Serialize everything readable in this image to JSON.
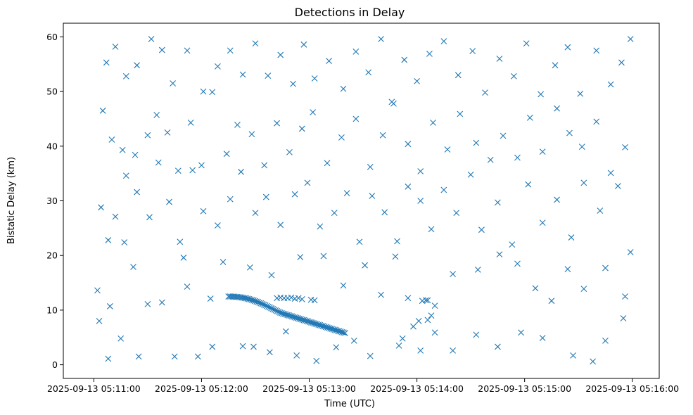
{
  "chart_data": {
    "type": "scatter",
    "title": "Detections in Delay",
    "xlabel": "Time (UTC)",
    "ylabel": "Bistatic Delay (km)",
    "marker": "x",
    "color": "#1f77b4",
    "grid": false,
    "legend": "none",
    "xlim": [
      "2025-09-13 05:10:43",
      "2025-09-13 05:16:15"
    ],
    "ylim": [
      -2.5,
      62.5
    ],
    "xticks": [
      "2025-09-13 05:11:00",
      "2025-09-13 05:12:00",
      "2025-09-13 05:13:00",
      "2025-09-13 05:14:00",
      "2025-09-13 05:15:00",
      "2025-09-13 05:16:00"
    ],
    "yticks": [
      0,
      10,
      20,
      30,
      40,
      50,
      60
    ],
    "track": {
      "start": {
        "time": "2025-09-13 05:12:15",
        "delay_km": 12.5
      },
      "end": {
        "time": "2025-09-13 05:13:20",
        "delay_km": 5.8
      }
    },
    "points": [
      [
        "2025-09-13 05:11:03",
        8.0
      ],
      [
        "2025-09-13 05:11:08",
        1.1
      ],
      [
        "2025-09-13 05:11:02",
        13.6
      ],
      [
        "2025-09-13 05:11:15",
        4.8
      ],
      [
        "2025-09-13 05:11:25",
        1.5
      ],
      [
        "2025-09-13 05:11:45",
        1.5
      ],
      [
        "2025-09-13 05:12:06",
        3.3
      ],
      [
        "2025-09-13 05:11:58",
        1.5
      ],
      [
        "2025-09-13 05:12:23",
        3.4
      ],
      [
        "2025-09-13 05:12:29",
        3.3
      ],
      [
        "2025-09-13 05:12:38",
        2.3
      ],
      [
        "2025-09-13 05:12:53",
        1.7
      ],
      [
        "2025-09-13 05:13:04",
        0.7
      ],
      [
        "2025-09-13 05:13:15",
        3.2
      ],
      [
        "2025-09-13 05:13:25",
        4.4
      ],
      [
        "2025-09-13 05:13:34",
        1.6
      ],
      [
        "2025-09-13 05:13:50",
        3.5
      ],
      [
        "2025-09-13 05:14:02",
        2.6
      ],
      [
        "2025-09-13 05:14:10",
        5.9
      ],
      [
        "2025-09-13 05:14:20",
        2.6
      ],
      [
        "2025-09-13 05:14:33",
        5.5
      ],
      [
        "2025-09-13 05:14:45",
        3.3
      ],
      [
        "2025-09-13 05:14:58",
        5.9
      ],
      [
        "2025-09-13 05:15:10",
        4.9
      ],
      [
        "2025-09-13 05:15:27",
        1.7
      ],
      [
        "2025-09-13 05:15:38",
        0.6
      ],
      [
        "2025-09-13 05:15:45",
        4.4
      ],
      [
        "2025-09-13 05:15:55",
        8.5
      ],
      [
        "2025-09-13 05:11:09",
        10.7
      ],
      [
        "2025-09-13 05:11:17",
        22.4
      ],
      [
        "2025-09-13 05:11:22",
        17.9
      ],
      [
        "2025-09-13 05:11:30",
        11.1
      ],
      [
        "2025-09-13 05:11:38",
        11.4
      ],
      [
        "2025-09-13 05:11:50",
        19.6
      ],
      [
        "2025-09-13 05:11:52",
        14.3
      ],
      [
        "2025-09-13 05:12:05",
        12.1
      ],
      [
        "2025-09-13 05:12:12",
        18.8
      ],
      [
        "2025-09-13 05:12:27",
        17.8
      ],
      [
        "2025-09-13 05:12:39",
        16.4
      ],
      [
        "2025-09-13 05:12:47",
        6.1
      ],
      [
        "2025-09-13 05:12:55",
        19.7
      ],
      [
        "2025-09-13 05:13:08",
        19.9
      ],
      [
        "2025-09-13 05:13:19",
        14.5
      ],
      [
        "2025-09-13 05:13:31",
        18.2
      ],
      [
        "2025-09-13 05:13:40",
        12.8
      ],
      [
        "2025-09-13 05:13:48",
        19.8
      ],
      [
        "2025-09-13 05:13:55",
        12.2
      ],
      [
        "2025-09-13 05:14:06",
        11.8
      ],
      [
        "2025-09-13 05:14:20",
        16.6
      ],
      [
        "2025-09-13 05:14:34",
        17.4
      ],
      [
        "2025-09-13 05:14:46",
        20.2
      ],
      [
        "2025-09-13 05:14:56",
        18.5
      ],
      [
        "2025-09-13 05:15:06",
        14.0
      ],
      [
        "2025-09-13 05:15:15",
        11.7
      ],
      [
        "2025-09-13 05:15:24",
        17.5
      ],
      [
        "2025-09-13 05:15:33",
        13.9
      ],
      [
        "2025-09-13 05:15:45",
        17.7
      ],
      [
        "2025-09-13 05:15:56",
        12.5
      ],
      [
        "2025-09-13 05:11:04",
        28.8
      ],
      [
        "2025-09-13 05:11:08",
        22.8
      ],
      [
        "2025-09-13 05:11:12",
        27.1
      ],
      [
        "2025-09-13 05:11:18",
        34.6
      ],
      [
        "2025-09-13 05:11:24",
        31.6
      ],
      [
        "2025-09-13 05:11:31",
        27.0
      ],
      [
        "2025-09-13 05:11:36",
        37.0
      ],
      [
        "2025-09-13 05:11:42",
        29.8
      ],
      [
        "2025-09-13 05:11:48",
        22.5
      ],
      [
        "2025-09-13 05:11:55",
        35.6
      ],
      [
        "2025-09-13 05:12:01",
        28.1
      ],
      [
        "2025-09-13 05:12:09",
        25.5
      ],
      [
        "2025-09-13 05:12:16",
        30.3
      ],
      [
        "2025-09-13 05:12:22",
        35.3
      ],
      [
        "2025-09-13 05:12:30",
        27.8
      ],
      [
        "2025-09-13 05:12:36",
        30.7
      ],
      [
        "2025-09-13 05:12:44",
        25.6
      ],
      [
        "2025-09-13 05:12:52",
        31.2
      ],
      [
        "2025-09-13 05:12:59",
        33.3
      ],
      [
        "2025-09-13 05:13:06",
        25.3
      ],
      [
        "2025-09-13 05:13:14",
        27.8
      ],
      [
        "2025-09-13 05:13:21",
        31.4
      ],
      [
        "2025-09-13 05:13:28",
        22.5
      ],
      [
        "2025-09-13 05:13:35",
        30.9
      ],
      [
        "2025-09-13 05:13:42",
        27.9
      ],
      [
        "2025-09-13 05:13:49",
        22.6
      ],
      [
        "2025-09-13 05:13:55",
        32.6
      ],
      [
        "2025-09-13 05:14:02",
        30.0
      ],
      [
        "2025-09-13 05:14:08",
        24.8
      ],
      [
        "2025-09-13 05:14:15",
        32.0
      ],
      [
        "2025-09-13 05:14:22",
        27.8
      ],
      [
        "2025-09-13 05:14:30",
        34.8
      ],
      [
        "2025-09-13 05:14:36",
        24.7
      ],
      [
        "2025-09-13 05:14:45",
        29.7
      ],
      [
        "2025-09-13 05:14:53",
        22.0
      ],
      [
        "2025-09-13 05:15:02",
        33.0
      ],
      [
        "2025-09-13 05:15:10",
        26.0
      ],
      [
        "2025-09-13 05:15:18",
        30.2
      ],
      [
        "2025-09-13 05:15:26",
        23.3
      ],
      [
        "2025-09-13 05:15:33",
        33.3
      ],
      [
        "2025-09-13 05:15:42",
        28.2
      ],
      [
        "2025-09-13 05:15:52",
        32.7
      ],
      [
        "2025-09-13 05:15:59",
        20.6
      ],
      [
        "2025-09-13 05:11:05",
        46.5
      ],
      [
        "2025-09-13 05:11:10",
        41.2
      ],
      [
        "2025-09-13 05:11:16",
        39.3
      ],
      [
        "2025-09-13 05:11:23",
        38.4
      ],
      [
        "2025-09-13 05:11:30",
        42.0
      ],
      [
        "2025-09-13 05:11:35",
        45.7
      ],
      [
        "2025-09-13 05:11:41",
        42.5
      ],
      [
        "2025-09-13 05:11:47",
        35.5
      ],
      [
        "2025-09-13 05:11:54",
        44.3
      ],
      [
        "2025-09-13 05:12:00",
        36.5
      ],
      [
        "2025-09-13 05:12:06",
        49.9
      ],
      [
        "2025-09-13 05:12:14",
        38.6
      ],
      [
        "2025-09-13 05:12:20",
        43.9
      ],
      [
        "2025-09-13 05:12:28",
        42.2
      ],
      [
        "2025-09-13 05:12:35",
        36.5
      ],
      [
        "2025-09-13 05:12:42",
        44.2
      ],
      [
        "2025-09-13 05:12:49",
        38.9
      ],
      [
        "2025-09-13 05:12:56",
        43.2
      ],
      [
        "2025-09-13 05:13:02",
        46.2
      ],
      [
        "2025-09-13 05:13:10",
        36.9
      ],
      [
        "2025-09-13 05:13:18",
        41.6
      ],
      [
        "2025-09-13 05:13:26",
        45.0
      ],
      [
        "2025-09-13 05:13:34",
        36.2
      ],
      [
        "2025-09-13 05:13:41",
        42.0
      ],
      [
        "2025-09-13 05:13:47",
        47.8
      ],
      [
        "2025-09-13 05:13:55",
        40.4
      ],
      [
        "2025-09-13 05:14:02",
        35.4
      ],
      [
        "2025-09-13 05:14:09",
        44.3
      ],
      [
        "2025-09-13 05:14:17",
        39.4
      ],
      [
        "2025-09-13 05:14:24",
        45.9
      ],
      [
        "2025-09-13 05:14:33",
        40.6
      ],
      [
        "2025-09-13 05:14:41",
        37.5
      ],
      [
        "2025-09-13 05:14:48",
        41.9
      ],
      [
        "2025-09-13 05:14:56",
        37.9
      ],
      [
        "2025-09-13 05:15:03",
        45.2
      ],
      [
        "2025-09-13 05:15:10",
        39.0
      ],
      [
        "2025-09-13 05:15:18",
        46.9
      ],
      [
        "2025-09-13 05:15:25",
        42.4
      ],
      [
        "2025-09-13 05:15:32",
        39.9
      ],
      [
        "2025-09-13 05:15:40",
        44.5
      ],
      [
        "2025-09-13 05:15:48",
        35.1
      ],
      [
        "2025-09-13 05:15:56",
        39.8
      ],
      [
        "2025-09-13 05:11:07",
        55.3
      ],
      [
        "2025-09-13 05:11:12",
        58.2
      ],
      [
        "2025-09-13 05:11:18",
        52.8
      ],
      [
        "2025-09-13 05:11:24",
        54.8
      ],
      [
        "2025-09-13 05:11:32",
        59.6
      ],
      [
        "2025-09-13 05:11:38",
        57.6
      ],
      [
        "2025-09-13 05:11:44",
        51.5
      ],
      [
        "2025-09-13 05:11:52",
        57.5
      ],
      [
        "2025-09-13 05:12:01",
        50.0
      ],
      [
        "2025-09-13 05:12:09",
        54.6
      ],
      [
        "2025-09-13 05:12:16",
        57.5
      ],
      [
        "2025-09-13 05:12:23",
        53.1
      ],
      [
        "2025-09-13 05:12:30",
        58.8
      ],
      [
        "2025-09-13 05:12:37",
        52.9
      ],
      [
        "2025-09-13 05:12:44",
        56.7
      ],
      [
        "2025-09-13 05:12:51",
        51.4
      ],
      [
        "2025-09-13 05:12:57",
        58.6
      ],
      [
        "2025-09-13 05:13:03",
        52.4
      ],
      [
        "2025-09-13 05:13:11",
        55.6
      ],
      [
        "2025-09-13 05:13:19",
        50.5
      ],
      [
        "2025-09-13 05:13:26",
        57.3
      ],
      [
        "2025-09-13 05:13:33",
        53.5
      ],
      [
        "2025-09-13 05:13:40",
        59.6
      ],
      [
        "2025-09-13 05:13:46",
        48.1
      ],
      [
        "2025-09-13 05:13:53",
        55.8
      ],
      [
        "2025-09-13 05:14:00",
        51.9
      ],
      [
        "2025-09-13 05:14:07",
        56.9
      ],
      [
        "2025-09-13 05:14:15",
        59.2
      ],
      [
        "2025-09-13 05:14:23",
        53.0
      ],
      [
        "2025-09-13 05:14:31",
        57.4
      ],
      [
        "2025-09-13 05:14:38",
        49.8
      ],
      [
        "2025-09-13 05:14:46",
        56.0
      ],
      [
        "2025-09-13 05:14:54",
        52.8
      ],
      [
        "2025-09-13 05:15:01",
        58.8
      ],
      [
        "2025-09-13 05:15:09",
        49.5
      ],
      [
        "2025-09-13 05:15:17",
        54.8
      ],
      [
        "2025-09-13 05:15:24",
        58.1
      ],
      [
        "2025-09-13 05:15:31",
        49.6
      ],
      [
        "2025-09-13 05:15:40",
        57.5
      ],
      [
        "2025-09-13 05:15:48",
        51.3
      ],
      [
        "2025-09-13 05:15:54",
        55.3
      ],
      [
        "2025-09-13 05:15:59",
        59.6
      ],
      [
        "2025-09-13 05:12:42",
        12.2
      ],
      [
        "2025-09-13 05:12:44",
        12.3
      ],
      [
        "2025-09-13 05:12:46",
        12.2
      ],
      [
        "2025-09-13 05:12:48",
        12.2
      ],
      [
        "2025-09-13 05:12:50",
        12.3
      ],
      [
        "2025-09-13 05:12:52",
        12.1
      ],
      [
        "2025-09-13 05:12:54",
        12.2
      ],
      [
        "2025-09-13 05:12:56",
        12.0
      ],
      [
        "2025-09-13 05:13:01",
        11.9
      ],
      [
        "2025-09-13 05:13:03",
        11.8
      ],
      [
        "2025-09-13 05:14:03",
        11.7
      ],
      [
        "2025-09-13 05:14:05",
        11.8
      ],
      [
        "2025-09-13 05:14:10",
        10.8
      ],
      [
        "2025-09-13 05:14:08",
        9.0
      ],
      [
        "2025-09-13 05:14:06",
        8.2
      ],
      [
        "2025-09-13 05:14:01",
        8.0
      ],
      [
        "2025-09-13 05:13:58",
        7.0
      ],
      [
        "2025-09-13 05:13:52",
        4.8
      ]
    ]
  }
}
